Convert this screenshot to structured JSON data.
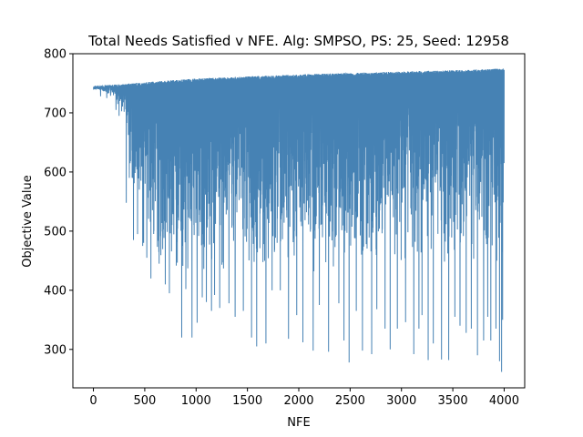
{
  "chart_data": {
    "type": "line",
    "title": "Total Needs Satisfied v NFE. Alg: SMPSO, PS: 25, Seed: 12958",
    "xlabel": "NFE",
    "ylabel": "Objective Value",
    "xlim": [
      -200,
      4200
    ],
    "ylim": [
      235,
      800
    ],
    "xticks": [
      0,
      500,
      1000,
      1500,
      2000,
      2500,
      3000,
      3500,
      4000
    ],
    "yticks": [
      300,
      400,
      500,
      600,
      700,
      800
    ],
    "grid": false,
    "legend": "none",
    "series": [
      {
        "color": "#4682b4",
        "x_start": 0,
        "x_end": 4000,
        "x_step": 1,
        "upper_envelope": [
          [
            0,
            745
          ],
          [
            300,
            749
          ],
          [
            500,
            752
          ],
          [
            1000,
            758
          ],
          [
            2000,
            765
          ],
          [
            3000,
            770
          ],
          [
            3500,
            772
          ],
          [
            4000,
            775
          ]
        ],
        "lower_envelope": [
          [
            0,
            740
          ],
          [
            100,
            735
          ],
          [
            200,
            725
          ],
          [
            300,
            690
          ],
          [
            350,
            600
          ],
          [
            400,
            540
          ],
          [
            500,
            470
          ],
          [
            700,
            440
          ],
          [
            1000,
            420
          ],
          [
            2000,
            430
          ],
          [
            3000,
            430
          ],
          [
            4000,
            450
          ]
        ],
        "dips": [
          [
            70,
            728
          ],
          [
            130,
            725
          ],
          [
            220,
            705
          ],
          [
            250,
            695
          ],
          [
            320,
            548
          ],
          [
            350,
            590
          ],
          [
            390,
            485
          ],
          [
            430,
            495
          ],
          [
            480,
            475
          ],
          [
            520,
            455
          ],
          [
            560,
            420
          ],
          [
            640,
            445
          ],
          [
            700,
            410
          ],
          [
            740,
            395
          ],
          [
            860,
            320
          ],
          [
            900,
            402
          ],
          [
            960,
            320
          ],
          [
            1010,
            345
          ],
          [
            1060,
            388
          ],
          [
            1100,
            380
          ],
          [
            1150,
            365
          ],
          [
            1180,
            392
          ],
          [
            1230,
            370
          ],
          [
            1320,
            378
          ],
          [
            1380,
            355
          ],
          [
            1460,
            365
          ],
          [
            1540,
            320
          ],
          [
            1590,
            305
          ],
          [
            1680,
            310
          ],
          [
            1740,
            400
          ],
          [
            1820,
            400
          ],
          [
            1900,
            318
          ],
          [
            1980,
            358
          ],
          [
            2040,
            312
          ],
          [
            2140,
            298
          ],
          [
            2200,
            375
          ],
          [
            2290,
            296
          ],
          [
            2390,
            378
          ],
          [
            2440,
            315
          ],
          [
            2490,
            278
          ],
          [
            2560,
            365
          ],
          [
            2620,
            298
          ],
          [
            2710,
            292
          ],
          [
            2760,
            368
          ],
          [
            2840,
            335
          ],
          [
            2890,
            300
          ],
          [
            2960,
            335
          ],
          [
            3040,
            346
          ],
          [
            3120,
            292
          ],
          [
            3170,
            335
          ],
          [
            3200,
            358
          ],
          [
            3260,
            282
          ],
          [
            3310,
            310
          ],
          [
            3390,
            283
          ],
          [
            3460,
            282
          ],
          [
            3520,
            355
          ],
          [
            3570,
            340
          ],
          [
            3630,
            328
          ],
          [
            3680,
            335
          ],
          [
            3740,
            290
          ],
          [
            3800,
            315
          ],
          [
            3840,
            355
          ],
          [
            3870,
            315
          ],
          [
            3920,
            335
          ],
          [
            3955,
            280
          ],
          [
            3975,
            262
          ],
          [
            3985,
            350
          ]
        ]
      }
    ]
  }
}
